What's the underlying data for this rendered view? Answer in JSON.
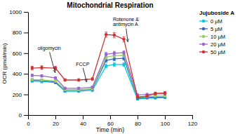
{
  "chart_data": {
    "type": "line",
    "title": "Mitochondrial Respiration",
    "xlabel": "Time (min)",
    "ylabel": "OCR (pmol/min)",
    "xlim": [
      0,
      120
    ],
    "ylim": [
      0,
      1000
    ],
    "xticks": [
      0,
      20,
      40,
      60,
      80,
      100,
      120
    ],
    "yticks": [
      0,
      200,
      400,
      600,
      800,
      1000
    ],
    "grid": false,
    "legend": "right",
    "legend_title": "Jujuboside A",
    "marker": "circle",
    "x": [
      3,
      10,
      20,
      27,
      37,
      47,
      57,
      63,
      70,
      80,
      87,
      93,
      100
    ],
    "series": [
      {
        "name": "0 μM",
        "color": "#00CCDD",
        "values": [
          330,
          325,
          315,
          230,
          230,
          240,
          475,
          490,
          490,
          155,
          165,
          165,
          170
        ],
        "errors": [
          12,
          12,
          12,
          8,
          8,
          8,
          18,
          18,
          18,
          8,
          8,
          8,
          8
        ]
      },
      {
        "name": "5 μM",
        "color": "#3366CC",
        "values": [
          340,
          335,
          320,
          240,
          240,
          250,
          530,
          545,
          550,
          165,
          170,
          175,
          175
        ],
        "errors": [
          12,
          12,
          12,
          8,
          8,
          8,
          18,
          18,
          18,
          8,
          8,
          8,
          8
        ]
      },
      {
        "name": "10 μM",
        "color": "#99CC66",
        "values": [
          345,
          340,
          330,
          245,
          245,
          255,
          560,
          575,
          580,
          175,
          180,
          185,
          185
        ],
        "errors": [
          12,
          12,
          12,
          8,
          8,
          8,
          18,
          18,
          18,
          8,
          8,
          8,
          8
        ]
      },
      {
        "name": "20 μM",
        "color": "#9966CC",
        "values": [
          385,
          380,
          360,
          260,
          260,
          270,
          590,
          600,
          605,
          195,
          200,
          205,
          205
        ],
        "errors": [
          12,
          12,
          12,
          8,
          8,
          8,
          18,
          18,
          18,
          8,
          8,
          8,
          8
        ]
      },
      {
        "name": "50 μM",
        "color": "#CC3333",
        "values": [
          455,
          460,
          455,
          340,
          340,
          350,
          780,
          775,
          735,
          175,
          185,
          210,
          215
        ],
        "errors": [
          18,
          18,
          18,
          12,
          12,
          12,
          25,
          25,
          25,
          12,
          12,
          12,
          12
        ]
      }
    ],
    "annotations": [
      {
        "text": "oligomycin",
        "x": 20,
        "y": 400,
        "text_x": 7,
        "text_y": 620
      },
      {
        "text": "FCCP",
        "x": 43,
        "y": 310,
        "text_x": 35,
        "text_y": 460
      },
      {
        "text": "Rotenone &\nantimycin A",
        "x": 73,
        "y": 700,
        "text_x": 62,
        "text_y": 850
      }
    ]
  }
}
